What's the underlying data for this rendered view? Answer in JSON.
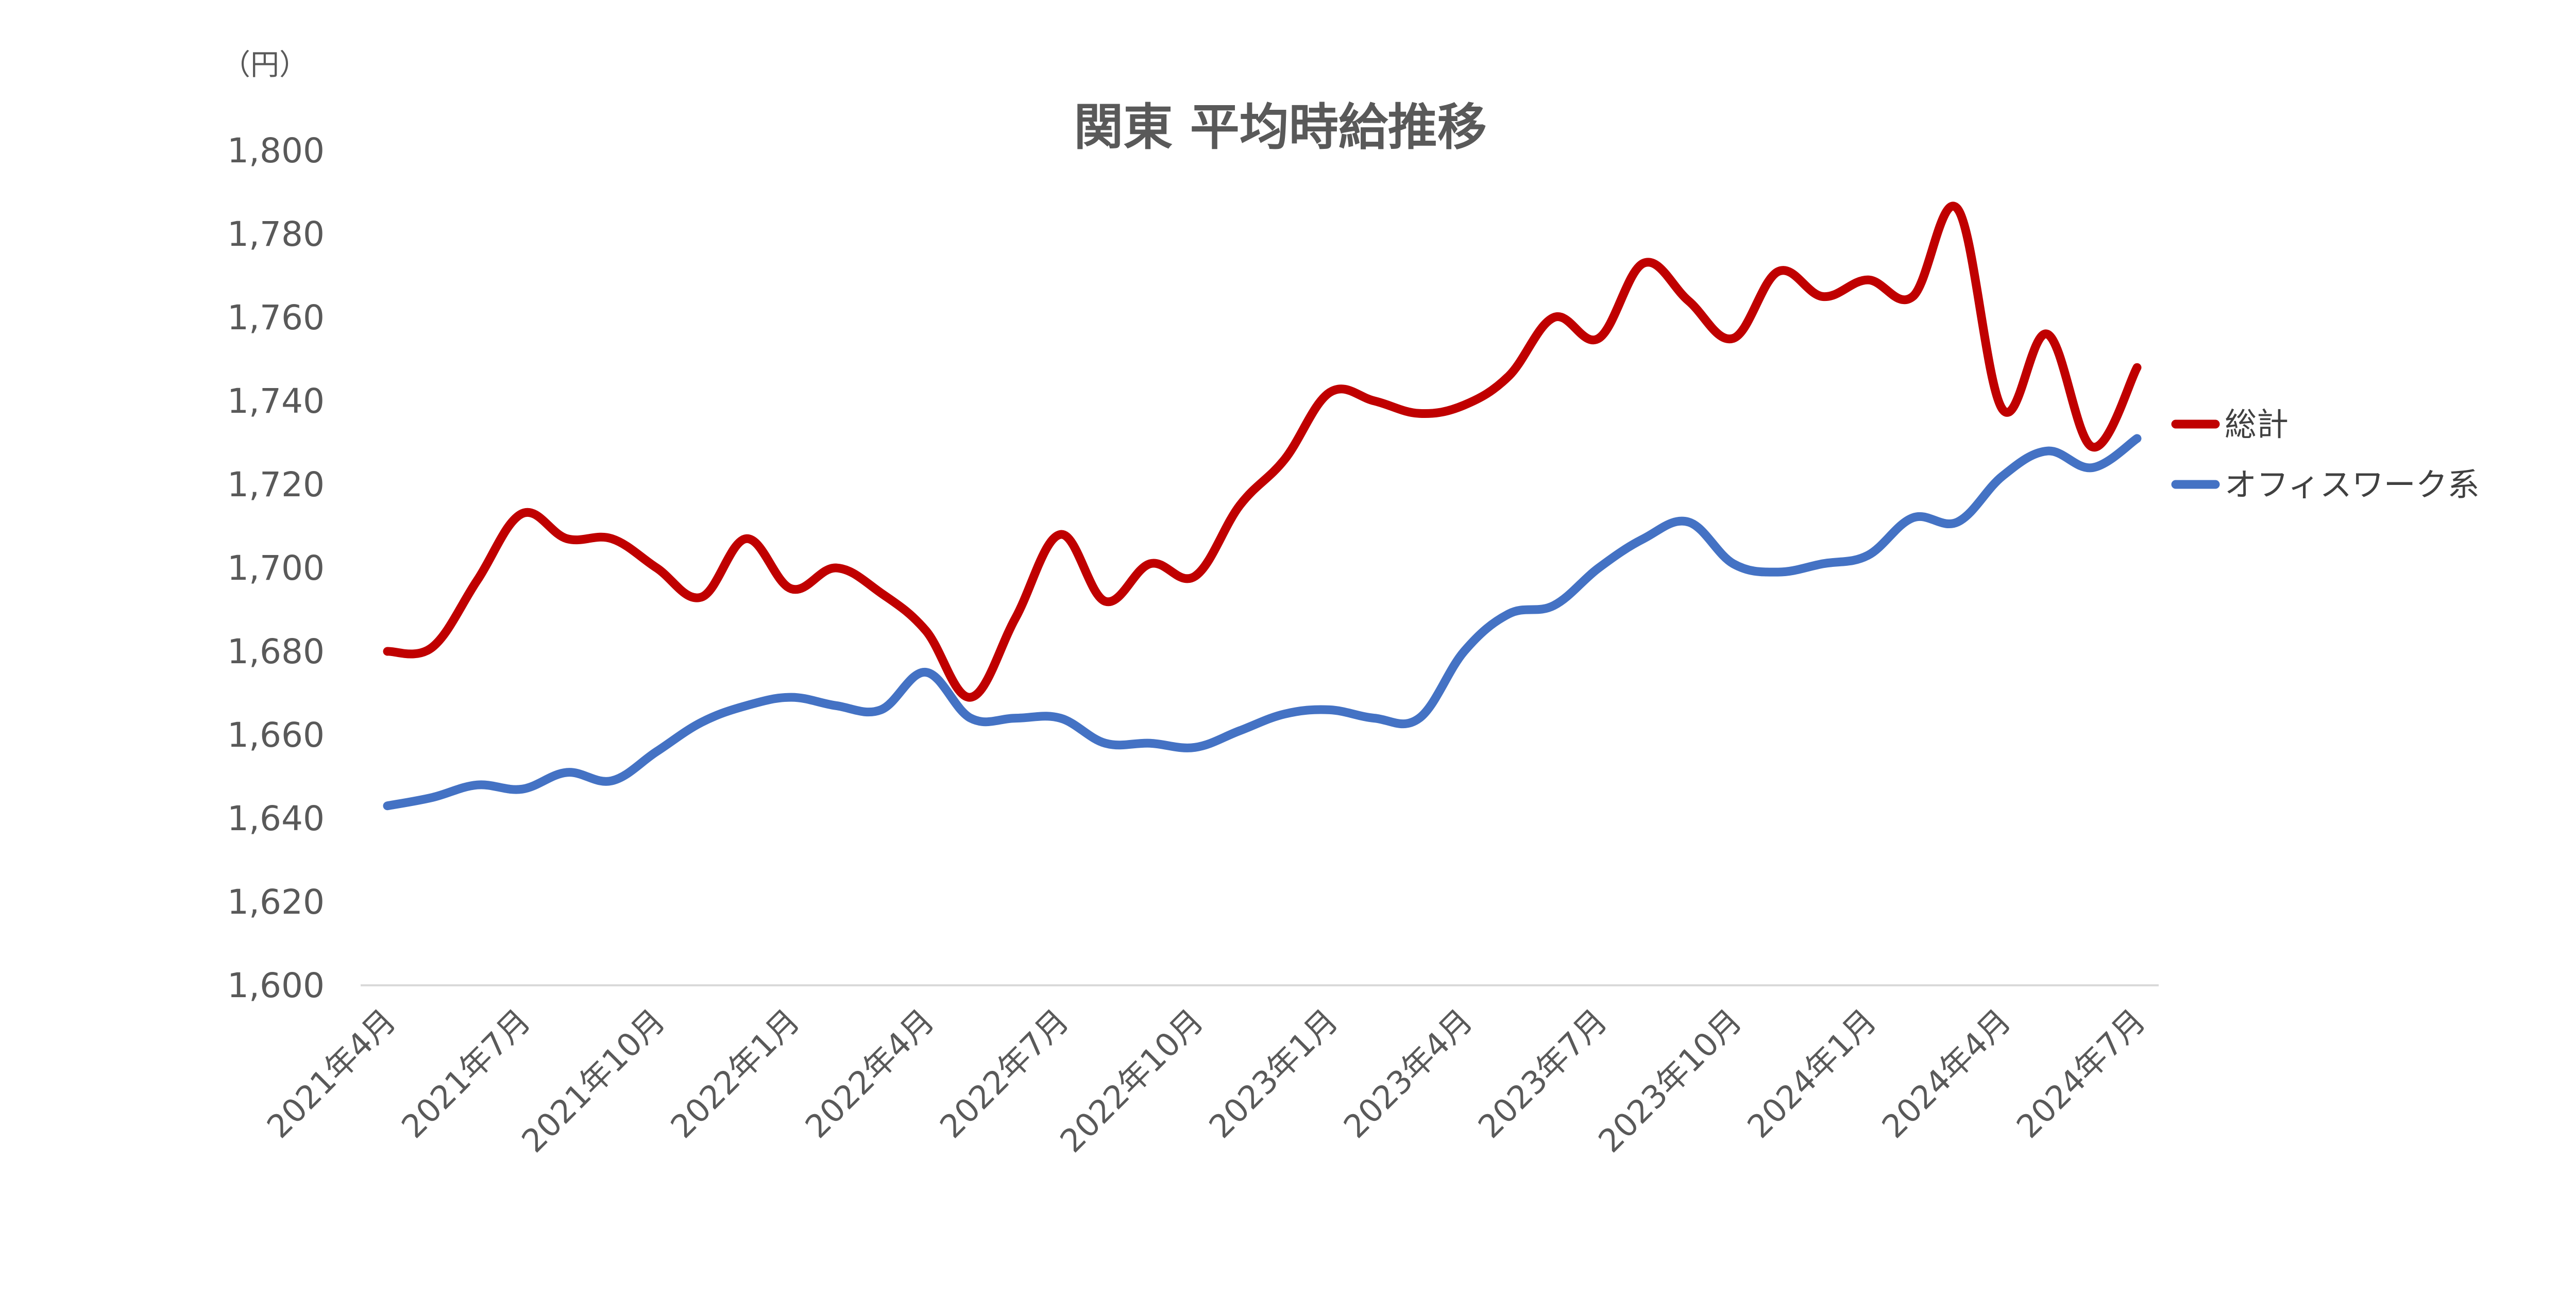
{
  "chart_data": {
    "type": "line",
    "title": "関東 平均時給推移",
    "unit_label": "（円）",
    "ylim": [
      1600,
      1800
    ],
    "yticks": [
      1600,
      1620,
      1640,
      1660,
      1680,
      1700,
      1720,
      1740,
      1760,
      1780,
      1800
    ],
    "ytick_labels": [
      "1,600",
      "1,620",
      "1,640",
      "1,660",
      "1,680",
      "1,700",
      "1,720",
      "1,740",
      "1,760",
      "1,780",
      "1,800"
    ],
    "grid": false,
    "legend_position": "right",
    "x": [
      "2021年4月",
      "2021年5月",
      "2021年6月",
      "2021年7月",
      "2021年8月",
      "2021年9月",
      "2021年10月",
      "2021年11月",
      "2021年12月",
      "2022年1月",
      "2022年2月",
      "2022年3月",
      "2022年4月",
      "2022年5月",
      "2022年6月",
      "2022年7月",
      "2022年8月",
      "2022年9月",
      "2022年10月",
      "2022年11月",
      "2022年12月",
      "2023年1月",
      "2023年2月",
      "2023年3月",
      "2023年4月",
      "2023年5月",
      "2023年6月",
      "2023年7月",
      "2023年8月",
      "2023年9月",
      "2023年10月",
      "2023年11月",
      "2023年12月",
      "2024年1月",
      "2024年2月",
      "2024年3月",
      "2024年4月",
      "2024年5月",
      "2024年6月",
      "2024年7月"
    ],
    "x_tick_labels": [
      "2021年4月",
      "2021年7月",
      "2021年10月",
      "2022年1月",
      "2022年4月",
      "2022年7月",
      "2022年10月",
      "2023年1月",
      "2023年4月",
      "2023年7月",
      "2023年10月",
      "2024年1月",
      "2024年4月",
      "2024年7月"
    ],
    "series": [
      {
        "name": "総計",
        "color": "#C00000",
        "values": [
          1680,
          1681,
          1697,
          1713,
          1707,
          1707,
          1700,
          1693,
          1707,
          1695,
          1700,
          1694,
          1685,
          1669,
          1688,
          1708,
          1692,
          1701,
          1698,
          1715,
          1726,
          1742,
          1740,
          1737,
          1739,
          1746,
          1760,
          1755,
          1773,
          1764,
          1755,
          1771,
          1765,
          1769,
          1765,
          1786,
          1738,
          1756,
          1729,
          1748
        ]
      },
      {
        "name": "オフィスワーク系",
        "color": "#4472C4",
        "values": [
          1643,
          1645,
          1648,
          1647,
          1651,
          1649,
          1656,
          1663,
          1667,
          1669,
          1667,
          1666,
          1675,
          1664,
          1664,
          1664,
          1658,
          1658,
          1657,
          1661,
          1665,
          1666,
          1664,
          1664,
          1680,
          1689,
          1691,
          1700,
          1707,
          1711,
          1701,
          1699,
          1701,
          1703,
          1712,
          1711,
          1722,
          1728,
          1724,
          1731
        ]
      }
    ]
  }
}
